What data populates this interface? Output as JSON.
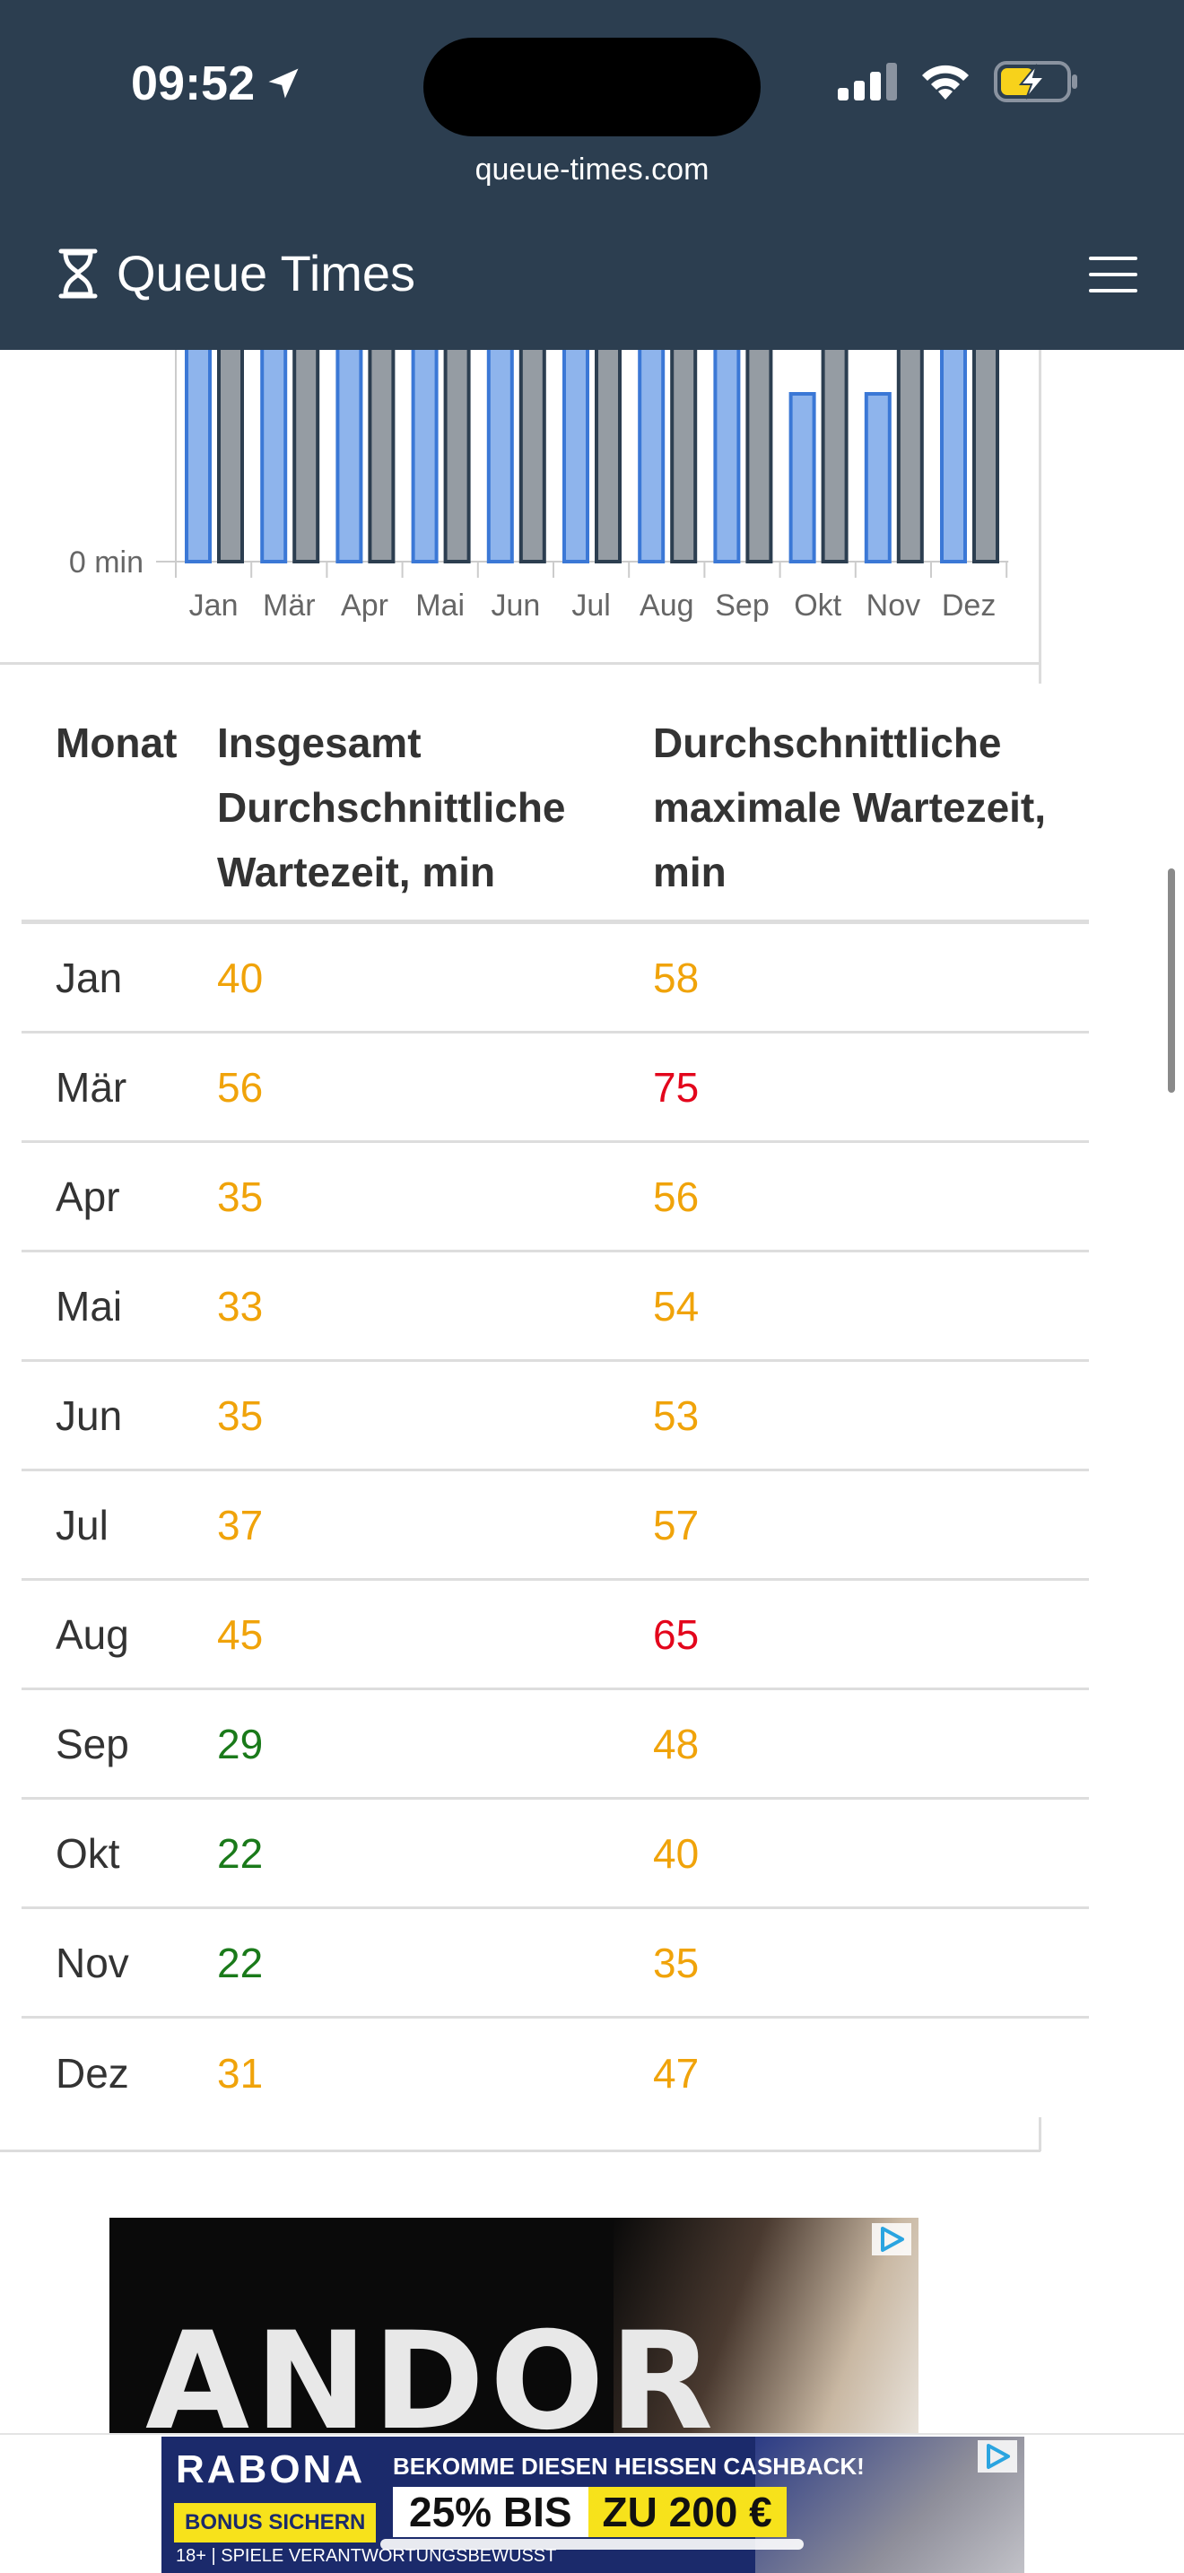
{
  "status_bar": {
    "time": "09:52"
  },
  "browser": {
    "url": "queue-times.com"
  },
  "header": {
    "title": "Queue Times"
  },
  "chart_data": {
    "type": "bar",
    "categories": [
      "Jan",
      "Mär",
      "Apr",
      "Mai",
      "Jun",
      "Jul",
      "Aug",
      "Sep",
      "Okt",
      "Nov",
      "Dez"
    ],
    "series": [
      {
        "values": [
          40,
          56,
          35,
          33,
          35,
          37,
          45,
          29,
          22,
          22,
          31
        ],
        "color": "#8eb4ec"
      },
      {
        "values": [
          58,
          75,
          56,
          54,
          53,
          57,
          65,
          48,
          40,
          35,
          47
        ],
        "color": "#959ca3"
      }
    ],
    "ytick_label": "0 min"
  },
  "table": {
    "headers": [
      "Monat",
      "Insgesamt Durchschnittliche Wartezeit, min",
      "Durchschnittliche maximale Wartezeit, min"
    ],
    "rows": [
      {
        "month": "Jan",
        "avg": "40",
        "max": "58"
      },
      {
        "month": "Mär",
        "avg": "56",
        "max": "75"
      },
      {
        "month": "Apr",
        "avg": "35",
        "max": "56"
      },
      {
        "month": "Mai",
        "avg": "33",
        "max": "54"
      },
      {
        "month": "Jun",
        "avg": "35",
        "max": "53"
      },
      {
        "month": "Jul",
        "avg": "37",
        "max": "57"
      },
      {
        "month": "Aug",
        "avg": "45",
        "max": "65"
      },
      {
        "month": "Sep",
        "avg": "29",
        "max": "48"
      },
      {
        "month": "Okt",
        "avg": "22",
        "max": "40"
      },
      {
        "month": "Nov",
        "avg": "22",
        "max": "35"
      },
      {
        "month": "Dez",
        "avg": "31",
        "max": "47"
      }
    ],
    "colors": {
      "green": "#1a7a1a",
      "orange": "#f0a30a",
      "red": "#e3061c"
    }
  },
  "ads": {
    "ad1_title": "ANDOR",
    "ad2_brand": "RABONA",
    "ad2_bonus": "BONUS SICHERN",
    "ad2_headline": "BEKOMME DIESEN HEISSEN CASHBACK!",
    "ad2_offer_white": "25% BIS",
    "ad2_offer_yellow": "ZU 200 €",
    "ad2_footer": "18+ | SPIELE VERANTWORTUNGSBEWUSST"
  }
}
